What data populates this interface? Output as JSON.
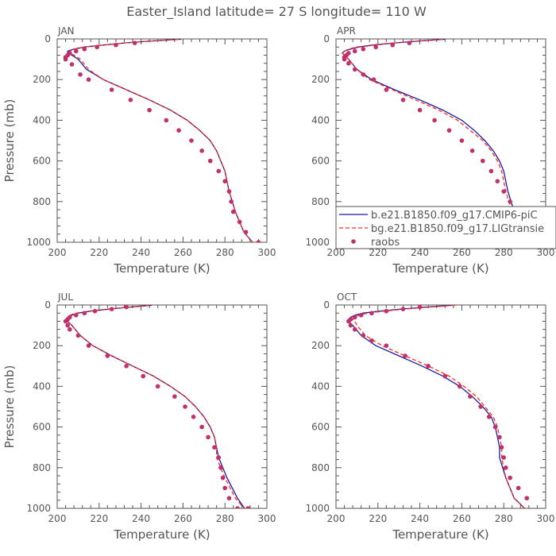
{
  "title": "Easter_Island  latitude= 27 S longitude= 110 W",
  "colors": {
    "model1": "#1a1aa6",
    "model2": "#ff2a1a",
    "raobs": "#c0306a",
    "axis": "#555555"
  },
  "legend": {
    "entries": [
      {
        "label": "b.e21.B1850.f09_g17.CMIP6-piC",
        "style": "solid-line",
        "color": "#1a1aa6"
      },
      {
        "label": "bg.e21.B1850.f09_g17.LIGtransie",
        "style": "dashed-line",
        "color": "#ff2a1a"
      },
      {
        "label": "raobs",
        "style": "dot",
        "color": "#c0306a"
      }
    ]
  },
  "chart_data": [
    {
      "type": "line",
      "panel_label": "JAN",
      "xlabel": "Temperature (K)",
      "ylabel": "Pressure (mb)",
      "xlim": [
        200,
        300
      ],
      "ylim": [
        1000,
        0
      ],
      "y_inverted": true,
      "xticks": [
        200,
        220,
        240,
        260,
        280,
        300
      ],
      "yticks": [
        0,
        200,
        400,
        600,
        800,
        1000
      ],
      "series": [
        {
          "name": "b.e21.B1850.f09_g17.CMIP6-piC",
          "style": "solid",
          "color": "#1a1aa6",
          "x": [
            259,
            245,
            232,
            222,
            213,
            208,
            205,
            205,
            207,
            210,
            214,
            222,
            233,
            244,
            254,
            262,
            268,
            273,
            276,
            278,
            280,
            281,
            282,
            285,
            289,
            294
          ],
          "y": [
            1,
            10,
            20,
            30,
            40,
            50,
            60,
            70,
            80,
            100,
            150,
            200,
            250,
            300,
            350,
            400,
            450,
            500,
            550,
            600,
            650,
            700,
            750,
            850,
            950,
            1010
          ]
        },
        {
          "name": "bg.e21.B1850.f09_g17.LIGtransie",
          "style": "dashed",
          "color": "#ff2a1a",
          "x": [
            258,
            245,
            232,
            222,
            213,
            208,
            206,
            206,
            208,
            211,
            215,
            222,
            233,
            244,
            254,
            262,
            268,
            273,
            276,
            278,
            280,
            281,
            282,
            285,
            289,
            294
          ],
          "y": [
            1,
            10,
            20,
            30,
            40,
            50,
            60,
            70,
            80,
            100,
            150,
            200,
            250,
            300,
            350,
            400,
            450,
            500,
            550,
            600,
            650,
            700,
            750,
            850,
            950,
            1010
          ]
        },
        {
          "name": "raobs",
          "style": "dots",
          "color": "#c0306a",
          "x": [
            237,
            228,
            219,
            213,
            209,
            206,
            205,
            204,
            204,
            207,
            211,
            215,
            226,
            235,
            244,
            252,
            258,
            264,
            269,
            273,
            277,
            280,
            282,
            283,
            284,
            287,
            290,
            296
          ],
          "y": [
            20,
            30,
            40,
            50,
            60,
            70,
            80,
            90,
            100,
            125,
            175,
            200,
            250,
            300,
            350,
            400,
            450,
            500,
            550,
            600,
            650,
            700,
            750,
            800,
            850,
            900,
            950,
            1000
          ]
        }
      ]
    },
    {
      "type": "line",
      "panel_label": "APR",
      "xlabel": "Temperature (K)",
      "ylabel": "",
      "xlim": [
        200,
        300
      ],
      "ylim": [
        1000,
        0
      ],
      "y_inverted": true,
      "xticks": [
        200,
        220,
        240,
        260,
        280,
        300
      ],
      "yticks": [
        0,
        200,
        400,
        600,
        800,
        1000
      ],
      "series": [
        {
          "name": "b.e21.B1850.f09_g17.CMIP6-piC",
          "style": "solid",
          "color": "#1a1aa6",
          "x": [
            252,
            240,
            228,
            218,
            211,
            207,
            204,
            203,
            204,
            206,
            210,
            217,
            228,
            240,
            251,
            260,
            266,
            271,
            275,
            278,
            280,
            281,
            282,
            285,
            289,
            294
          ],
          "y": [
            1,
            10,
            20,
            30,
            40,
            50,
            60,
            70,
            80,
            100,
            150,
            200,
            250,
            300,
            350,
            400,
            450,
            500,
            550,
            600,
            650,
            700,
            750,
            850,
            950,
            1010
          ]
        },
        {
          "name": "bg.e21.B1850.f09_g17.LIGtransie",
          "style": "dashed",
          "color": "#ff2a1a",
          "x": [
            251,
            239,
            227,
            217,
            210,
            206,
            204,
            203,
            204,
            206,
            210,
            216,
            227,
            238,
            249,
            258,
            264,
            270,
            274,
            277,
            279,
            280,
            281,
            284,
            288,
            294
          ],
          "y": [
            1,
            10,
            20,
            30,
            40,
            50,
            60,
            70,
            80,
            100,
            150,
            200,
            250,
            300,
            350,
            400,
            450,
            500,
            550,
            600,
            650,
            700,
            750,
            850,
            950,
            1010
          ]
        },
        {
          "name": "raobs",
          "style": "dots",
          "color": "#c0306a",
          "x": [
            235,
            227,
            219,
            213,
            209,
            206,
            205,
            204,
            204,
            206,
            209,
            213,
            218,
            224,
            232,
            240,
            247,
            254,
            260,
            265,
            270,
            274,
            277,
            280,
            283,
            284,
            286,
            292,
            296
          ],
          "y": [
            20,
            30,
            40,
            50,
            60,
            70,
            80,
            90,
            100,
            120,
            150,
            175,
            200,
            250,
            300,
            350,
            400,
            450,
            500,
            550,
            600,
            650,
            700,
            750,
            800,
            850,
            900,
            950,
            1000
          ]
        }
      ]
    },
    {
      "type": "line",
      "panel_label": "JUL",
      "xlabel": "Temperature (K)",
      "ylabel": "Pressure (mb)",
      "xlim": [
        200,
        300
      ],
      "ylim": [
        1000,
        0
      ],
      "y_inverted": true,
      "xticks": [
        200,
        220,
        240,
        260,
        280,
        300
      ],
      "yticks": [
        0,
        200,
        400,
        600,
        800,
        1000
      ],
      "series": [
        {
          "name": "b.e21.B1850.f09_g17.CMIP6-piC",
          "style": "solid",
          "color": "#1a1aa6",
          "x": [
            245,
            235,
            225,
            216,
            210,
            207,
            205,
            205,
            205,
            207,
            211,
            217,
            226,
            236,
            246,
            254,
            261,
            266,
            270,
            273,
            275,
            276,
            277,
            281,
            286,
            290
          ],
          "y": [
            1,
            10,
            20,
            30,
            40,
            50,
            60,
            70,
            80,
            100,
            150,
            200,
            250,
            300,
            350,
            400,
            450,
            500,
            550,
            600,
            650,
            700,
            750,
            850,
            950,
            1010
          ]
        },
        {
          "name": "bg.e21.B1850.f09_g17.LIGtransie",
          "style": "dashed",
          "color": "#ff2a1a",
          "x": [
            244,
            234,
            224,
            215,
            209,
            206,
            205,
            205,
            205,
            207,
            211,
            217,
            226,
            236,
            246,
            254,
            261,
            266,
            270,
            273,
            275,
            276,
            276,
            280,
            285,
            290
          ],
          "y": [
            1,
            10,
            20,
            30,
            40,
            50,
            60,
            70,
            80,
            100,
            150,
            200,
            250,
            300,
            350,
            400,
            450,
            500,
            550,
            600,
            650,
            700,
            750,
            850,
            950,
            1010
          ]
        },
        {
          "name": "raobs",
          "style": "dots",
          "color": "#c0306a",
          "x": [
            233,
            226,
            218,
            213,
            209,
            206,
            205,
            204,
            205,
            206,
            210,
            215,
            224,
            233,
            241,
            248,
            256,
            261,
            265,
            269,
            272,
            275,
            277,
            278,
            279,
            280,
            282,
            286,
            291
          ],
          "y": [
            10,
            20,
            30,
            40,
            50,
            60,
            70,
            80,
            100,
            120,
            150,
            200,
            250,
            300,
            350,
            400,
            450,
            500,
            550,
            600,
            650,
            700,
            750,
            800,
            850,
            900,
            950,
            1000,
            1000
          ]
        }
      ]
    },
    {
      "type": "line",
      "panel_label": "OCT",
      "xlabel": "Temperature (K)",
      "ylabel": "",
      "xlim": [
        200,
        300
      ],
      "ylim": [
        1000,
        0
      ],
      "y_inverted": true,
      "xticks": [
        200,
        220,
        240,
        260,
        280,
        300
      ],
      "yticks": [
        0,
        200,
        400,
        600,
        800,
        1000
      ],
      "series": [
        {
          "name": "b.e21.B1850.f09_g17.CMIP6-piC",
          "style": "solid",
          "color": "#1a1aa6",
          "x": [
            255,
            243,
            231,
            221,
            213,
            209,
            207,
            206,
            206,
            208,
            212,
            219,
            230,
            241,
            251,
            259,
            265,
            270,
            274,
            276,
            277,
            278,
            278,
            281,
            285,
            291
          ],
          "y": [
            1,
            10,
            20,
            30,
            40,
            50,
            60,
            70,
            80,
            100,
            150,
            200,
            250,
            300,
            350,
            400,
            450,
            500,
            550,
            600,
            650,
            700,
            750,
            850,
            950,
            1010
          ]
        },
        {
          "name": "bg.e21.B1850.f09_g17.LIGtransie",
          "style": "dashed",
          "color": "#ff2a1a",
          "x": [
            257,
            245,
            233,
            223,
            215,
            211,
            209,
            208,
            209,
            210,
            214,
            222,
            233,
            244,
            254,
            261,
            267,
            271,
            275,
            277,
            278,
            279,
            279,
            281,
            285,
            291
          ],
          "y": [
            1,
            10,
            20,
            30,
            40,
            50,
            60,
            70,
            80,
            100,
            150,
            200,
            250,
            300,
            350,
            400,
            450,
            500,
            550,
            600,
            650,
            700,
            750,
            850,
            950,
            1010
          ]
        },
        {
          "name": "raobs",
          "style": "dots",
          "color": "#c0306a",
          "x": [
            240,
            232,
            224,
            217,
            212,
            209,
            207,
            206,
            207,
            209,
            213,
            217,
            224,
            233,
            244,
            252,
            259,
            264,
            269,
            273,
            276,
            278,
            279,
            280,
            281,
            283,
            287,
            291
          ],
          "y": [
            10,
            20,
            30,
            40,
            50,
            60,
            70,
            80,
            100,
            120,
            150,
            175,
            200,
            250,
            300,
            350,
            400,
            450,
            500,
            550,
            600,
            650,
            700,
            750,
            800,
            850,
            900,
            950
          ]
        }
      ]
    }
  ]
}
